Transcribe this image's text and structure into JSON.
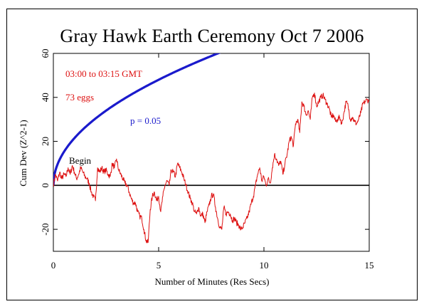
{
  "chart_data": {
    "type": "line",
    "title": "Gray Hawk Earth Ceremony Oct 7 2006",
    "xlabel": "Number of Minutes (Res Secs)",
    "ylabel": "Cum Dev (Z^2-1)",
    "xlim": [
      0,
      15
    ],
    "ylim": [
      -30,
      60
    ],
    "x_ticks": [
      0,
      5,
      10,
      15
    ],
    "y_ticks": [
      -20,
      0,
      20,
      40,
      60
    ],
    "grid": false,
    "annotations": {
      "time_range": "03:00 to 03:15 GMT",
      "egg_count": "73 eggs",
      "significance_label": "p = 0.05",
      "start_marker": "Begin"
    },
    "colors": {
      "data": "#dd1111",
      "envelope": "#1a1acc",
      "axis": "#000000",
      "info_text": "#dd1111"
    },
    "series": [
      {
        "role": "data",
        "x": [
          0,
          0.1,
          0.2,
          0.3,
          0.4,
          0.5,
          0.6,
          0.7,
          0.8,
          0.9,
          1.0,
          1.1,
          1.2,
          1.3,
          1.4,
          1.5,
          1.6,
          1.7,
          1.8,
          1.9,
          2.0,
          2.1,
          2.2,
          2.3,
          2.4,
          2.5,
          2.6,
          2.7,
          2.8,
          2.9,
          3.0,
          3.1,
          3.2,
          3.3,
          3.4,
          3.5,
          3.6,
          3.7,
          3.8,
          3.9,
          4.0,
          4.1,
          4.2,
          4.3,
          4.4,
          4.5,
          4.6,
          4.7,
          4.8,
          4.9,
          5.0,
          5.1,
          5.2,
          5.3,
          5.4,
          5.5,
          5.6,
          5.7,
          5.8,
          5.9,
          6.0,
          6.1,
          6.2,
          6.3,
          6.4,
          6.5,
          6.6,
          6.7,
          6.8,
          6.9,
          7.0,
          7.1,
          7.2,
          7.3,
          7.4,
          7.5,
          7.6,
          7.7,
          7.8,
          7.9,
          8.0,
          8.1,
          8.2,
          8.3,
          8.4,
          8.5,
          8.6,
          8.7,
          8.8,
          8.9,
          9.0,
          9.1,
          9.2,
          9.3,
          9.4,
          9.5,
          9.6,
          9.7,
          9.8,
          9.9,
          10.0,
          10.1,
          10.2,
          10.3,
          10.4,
          10.5,
          10.6,
          10.7,
          10.8,
          10.9,
          11.0,
          11.1,
          11.2,
          11.3,
          11.4,
          11.5,
          11.6,
          11.7,
          11.8,
          11.9,
          12.0,
          12.1,
          12.2,
          12.3,
          12.4,
          12.5,
          12.6,
          12.7,
          12.8,
          12.9,
          13.0,
          13.1,
          13.2,
          13.3,
          13.4,
          13.5,
          13.6,
          13.7,
          13.8,
          13.9,
          14.0,
          14.1,
          14.2,
          14.3,
          14.4,
          14.5,
          14.6,
          14.7,
          14.8,
          14.9,
          15.0
        ],
        "y": [
          0,
          5,
          2,
          6,
          3,
          5,
          4,
          8,
          5,
          9,
          6,
          3,
          5,
          8,
          6,
          4,
          3,
          1,
          -3,
          -5,
          -7,
          8,
          6,
          8,
          6,
          7,
          5,
          4,
          10,
          8,
          12,
          7,
          5,
          3,
          1,
          0,
          -3,
          -6,
          -8,
          -8,
          -12,
          -14,
          -15,
          -20,
          -25,
          -26,
          -11,
          -5,
          -3,
          -7,
          -5,
          -12,
          -5,
          0,
          2,
          0,
          7,
          6,
          4,
          10,
          8,
          6,
          3,
          0,
          -3,
          -6,
          -8,
          -12,
          -13,
          -10,
          -14,
          -13,
          -17,
          -12,
          -9,
          -5,
          -4,
          -10,
          -15,
          -19,
          -20,
          -10,
          -13,
          -12,
          -13,
          -16,
          -15,
          -17,
          -18,
          -20,
          -19,
          -17,
          -15,
          -12,
          -8,
          -5,
          0,
          5,
          8,
          2,
          4,
          0,
          3,
          1,
          8,
          14,
          12,
          9,
          11,
          5,
          10,
          14,
          20,
          22,
          18,
          28,
          30,
          24,
          38,
          36,
          32,
          34,
          30,
          40,
          42,
          36,
          38,
          40,
          41,
          39,
          37,
          35,
          31,
          32,
          29,
          30,
          31,
          28,
          33,
          38,
          36,
          30,
          31,
          29,
          28,
          30,
          33,
          37,
          38,
          39,
          38
        ],
        "note_unused": ""
      },
      {
        "role": "envelope",
        "name": "p = 0.05",
        "formula": "1.96*sqrt(2*t_seconds)"
      }
    ]
  }
}
